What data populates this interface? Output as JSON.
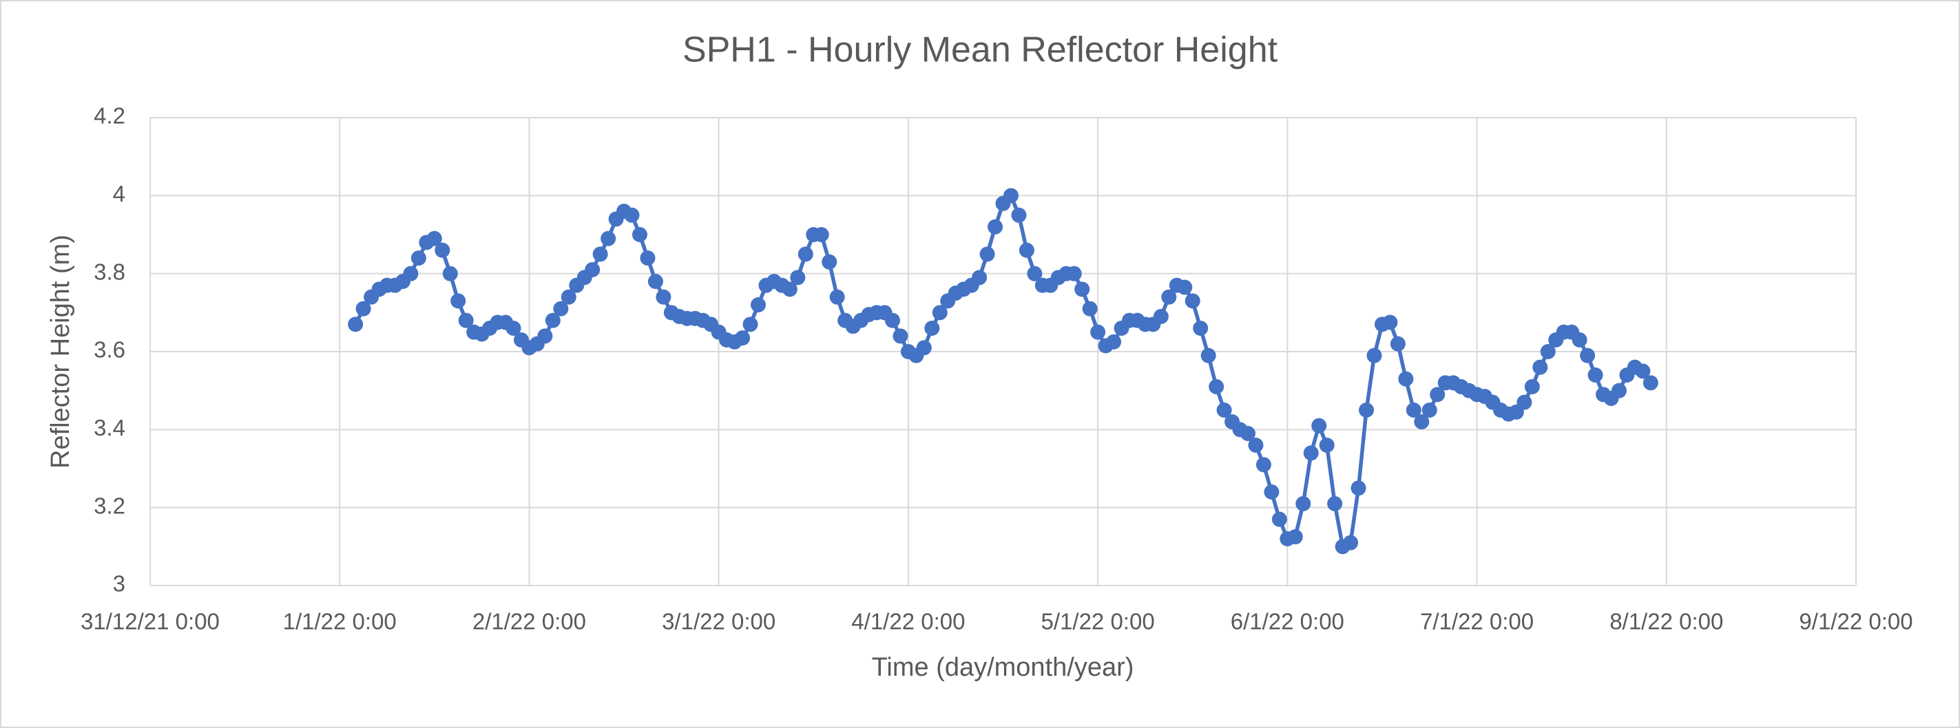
{
  "chart_data": {
    "type": "line",
    "title": "SPH1 - Hourly Mean Reflector Height",
    "x_label": "Time (day/month/year)",
    "y_label": "Reflector Height (m)",
    "xlim": [
      "31/12/21 0:00",
      "9/1/22 0:00"
    ],
    "xticks": [
      "31/12/21 0:00",
      "1/1/22 0:00",
      "2/1/22 0:00",
      "3/1/22 0:00",
      "4/1/22 0:00",
      "5/1/22 0:00",
      "6/1/22 0:00",
      "7/1/22 0:00",
      "8/1/22 0:00",
      "9/1/22 0:00"
    ],
    "ylim": [
      3,
      4.2
    ],
    "yticks": [
      3,
      3.2,
      3.4,
      3.6,
      3.8,
      4,
      4.2
    ],
    "grid": true,
    "x": [
      "1/1/22 2:00",
      "1/1/22 3:00",
      "1/1/22 4:00",
      "1/1/22 5:00",
      "1/1/22 6:00",
      "1/1/22 7:00",
      "1/1/22 8:00",
      "1/1/22 9:00",
      "1/1/22 10:00",
      "1/1/22 11:00",
      "1/1/22 12:00",
      "1/1/22 13:00",
      "1/1/22 14:00",
      "1/1/22 15:00",
      "1/1/22 16:00",
      "1/1/22 17:00",
      "1/1/22 18:00",
      "1/1/22 19:00",
      "1/1/22 20:00",
      "1/1/22 21:00",
      "1/1/22 22:00",
      "1/1/22 23:00",
      "2/1/22 0:00",
      "2/1/22 1:00",
      "2/1/22 2:00",
      "2/1/22 3:00",
      "2/1/22 4:00",
      "2/1/22 5:00",
      "2/1/22 6:00",
      "2/1/22 7:00",
      "2/1/22 8:00",
      "2/1/22 9:00",
      "2/1/22 10:00",
      "2/1/22 11:00",
      "2/1/22 12:00",
      "2/1/22 13:00",
      "2/1/22 14:00",
      "2/1/22 15:00",
      "2/1/22 16:00",
      "2/1/22 17:00",
      "2/1/22 18:00",
      "2/1/22 19:00",
      "2/1/22 20:00",
      "2/1/22 21:00",
      "2/1/22 22:00",
      "2/1/22 23:00",
      "3/1/22 0:00",
      "3/1/22 1:00",
      "3/1/22 2:00",
      "3/1/22 3:00",
      "3/1/22 4:00",
      "3/1/22 5:00",
      "3/1/22 6:00",
      "3/1/22 7:00",
      "3/1/22 8:00",
      "3/1/22 9:00",
      "3/1/22 10:00",
      "3/1/22 11:00",
      "3/1/22 12:00",
      "3/1/22 13:00",
      "3/1/22 14:00",
      "3/1/22 15:00",
      "3/1/22 16:00",
      "3/1/22 17:00",
      "3/1/22 18:00",
      "3/1/22 19:00",
      "3/1/22 20:00",
      "3/1/22 21:00",
      "3/1/22 22:00",
      "3/1/22 23:00",
      "4/1/22 0:00",
      "4/1/22 1:00",
      "4/1/22 2:00",
      "4/1/22 3:00",
      "4/1/22 4:00",
      "4/1/22 5:00",
      "4/1/22 6:00",
      "4/1/22 7:00",
      "4/1/22 8:00",
      "4/1/22 9:00",
      "4/1/22 10:00",
      "4/1/22 11:00",
      "4/1/22 12:00",
      "4/1/22 13:00",
      "4/1/22 14:00",
      "4/1/22 15:00",
      "4/1/22 16:00",
      "4/1/22 17:00",
      "4/1/22 18:00",
      "4/1/22 19:00",
      "4/1/22 20:00",
      "4/1/22 21:00",
      "4/1/22 22:00",
      "4/1/22 23:00",
      "5/1/22 0:00",
      "5/1/22 1:00",
      "5/1/22 2:00",
      "5/1/22 3:00",
      "5/1/22 4:00",
      "5/1/22 5:00",
      "5/1/22 6:00",
      "5/1/22 7:00",
      "5/1/22 8:00",
      "5/1/22 9:00",
      "5/1/22 10:00",
      "5/1/22 11:00",
      "5/1/22 12:00",
      "5/1/22 13:00",
      "5/1/22 14:00",
      "5/1/22 15:00",
      "5/1/22 16:00",
      "5/1/22 17:00",
      "5/1/22 18:00",
      "5/1/22 19:00",
      "5/1/22 20:00",
      "5/1/22 21:00",
      "5/1/22 22:00",
      "5/1/22 23:00",
      "6/1/22 0:00",
      "6/1/22 1:00",
      "6/1/22 2:00",
      "6/1/22 3:00",
      "6/1/22 4:00",
      "6/1/22 5:00",
      "6/1/22 6:00",
      "6/1/22 7:00",
      "6/1/22 8:00",
      "6/1/22 9:00",
      "6/1/22 10:00",
      "6/1/22 11:00",
      "6/1/22 12:00",
      "6/1/22 13:00",
      "6/1/22 14:00",
      "6/1/22 15:00",
      "6/1/22 16:00",
      "6/1/22 17:00",
      "6/1/22 18:00",
      "6/1/22 19:00",
      "6/1/22 20:00",
      "6/1/22 21:00",
      "6/1/22 22:00",
      "6/1/22 23:00",
      "7/1/22 0:00",
      "7/1/22 1:00",
      "7/1/22 2:00",
      "7/1/22 3:00",
      "7/1/22 4:00",
      "7/1/22 5:00",
      "7/1/22 6:00",
      "7/1/22 7:00",
      "7/1/22 8:00",
      "7/1/22 9:00",
      "7/1/22 10:00",
      "7/1/22 11:00",
      "7/1/22 12:00",
      "7/1/22 13:00",
      "7/1/22 14:00",
      "7/1/22 15:00",
      "7/1/22 16:00",
      "7/1/22 17:00",
      "7/1/22 18:00",
      "7/1/22 19:00",
      "7/1/22 20:00",
      "7/1/22 21:00",
      "7/1/22 22:00"
    ],
    "series": [
      {
        "color": "#4472c4",
        "values": [
          3.67,
          3.71,
          3.74,
          3.76,
          3.77,
          3.77,
          3.78,
          3.8,
          3.84,
          3.88,
          3.89,
          3.86,
          3.8,
          3.73,
          3.68,
          3.65,
          3.645,
          3.66,
          3.675,
          3.675,
          3.66,
          3.63,
          3.61,
          3.62,
          3.64,
          3.68,
          3.71,
          3.74,
          3.77,
          3.79,
          3.81,
          3.85,
          3.89,
          3.94,
          3.96,
          3.95,
          3.9,
          3.84,
          3.78,
          3.74,
          3.7,
          3.69,
          3.685,
          3.685,
          3.68,
          3.67,
          3.65,
          3.63,
          3.625,
          3.635,
          3.67,
          3.72,
          3.77,
          3.78,
          3.77,
          3.76,
          3.79,
          3.85,
          3.9,
          3.9,
          3.83,
          3.74,
          3.68,
          3.665,
          3.68,
          3.695,
          3.7,
          3.7,
          3.68,
          3.64,
          3.6,
          3.59,
          3.61,
          3.66,
          3.7,
          3.73,
          3.75,
          3.76,
          3.77,
          3.79,
          3.85,
          3.92,
          3.98,
          4.0,
          3.95,
          3.86,
          3.8,
          3.77,
          3.77,
          3.79,
          3.8,
          3.8,
          3.76,
          3.71,
          3.65,
          3.615,
          3.625,
          3.66,
          3.68,
          3.68,
          3.67,
          3.67,
          3.69,
          3.74,
          3.77,
          3.765,
          3.73,
          3.66,
          3.59,
          3.51,
          3.45,
          3.42,
          3.4,
          3.39,
          3.36,
          3.31,
          3.24,
          3.17,
          3.12,
          3.125,
          3.21,
          3.34,
          3.41,
          3.36,
          3.21,
          3.1,
          3.11,
          3.25,
          3.45,
          3.59,
          3.67,
          3.675,
          3.62,
          3.53,
          3.45,
          3.42,
          3.45,
          3.49,
          3.52,
          3.52,
          3.51,
          3.5,
          3.49,
          3.485,
          3.47,
          3.45,
          3.44,
          3.445,
          3.47,
          3.51,
          3.56,
          3.6,
          3.63,
          3.65,
          3.65,
          3.63,
          3.59,
          3.54,
          3.49,
          3.48,
          3.5,
          3.54,
          3.56,
          3.55,
          3.52
        ]
      }
    ]
  }
}
